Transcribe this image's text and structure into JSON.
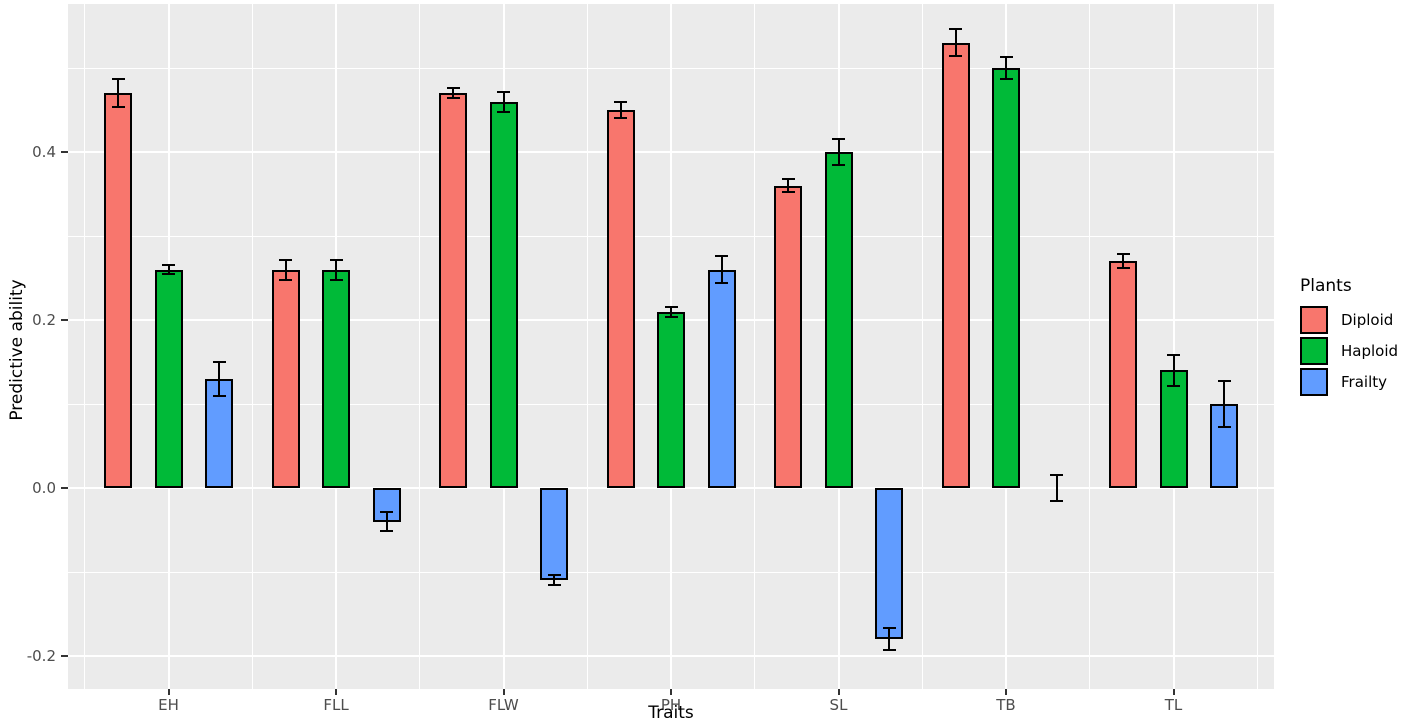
{
  "chart_data": {
    "type": "bar",
    "title": "",
    "xlabel": "Traits",
    "ylabel": "Predictive ability",
    "legend_title": "Plants",
    "legend_position": "right",
    "grid": true,
    "panel_background": "#EBEBEB",
    "gridline_color": "#FFFFFF",
    "bar_border_color": "#000000",
    "axis_text_color": "#4D4D4D",
    "ylim": [
      -0.24,
      0.58
    ],
    "y_major_ticks": [
      0.4,
      0.2,
      0.0,
      -0.2
    ],
    "y_tick_labels": [
      "0.4",
      "0.2",
      "0.0",
      "-0.2"
    ],
    "y_minor_gridlines": [
      0.5,
      0.3,
      0.1,
      -0.1
    ],
    "categories": [
      "EH",
      "FLL",
      "FLW",
      "PH",
      "SL",
      "TB",
      "TL"
    ],
    "series": [
      {
        "name": "Diploid",
        "color": "#F8766D",
        "values": [
          0.47,
          0.26,
          0.47,
          0.45,
          0.36,
          0.53,
          0.27
        ],
        "errors": [
          0.017,
          0.012,
          0.006,
          0.01,
          0.008,
          0.016,
          0.008
        ]
      },
      {
        "name": "Haploid",
        "color": "#00BA38",
        "values": [
          0.26,
          0.26,
          0.46,
          0.21,
          0.4,
          0.5,
          0.14
        ],
        "errors": [
          0.005,
          0.012,
          0.012,
          0.006,
          0.016,
          0.013,
          0.018
        ]
      },
      {
        "name": "Frailty",
        "color": "#619CFF",
        "values": [
          0.13,
          -0.04,
          -0.11,
          0.26,
          -0.18,
          0.0,
          0.1
        ],
        "errors": [
          0.02,
          0.011,
          0.006,
          0.016,
          0.013,
          0.015,
          0.027
        ]
      }
    ]
  }
}
